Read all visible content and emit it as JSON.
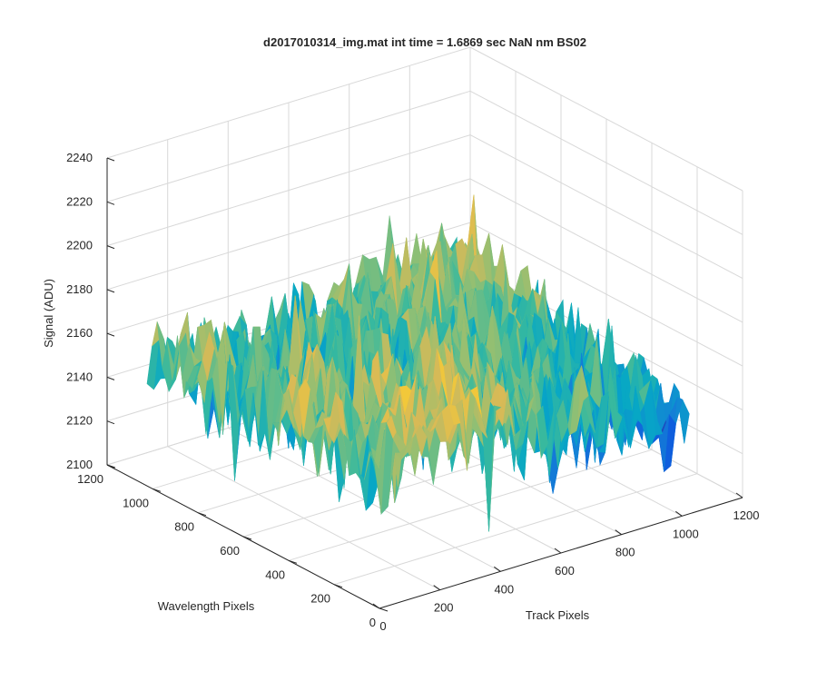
{
  "chart_data": {
    "type": "surface",
    "title": "d2017010314_img.mat int time = 1.6869 sec  NaN nm BS02",
    "xlabel": "Track Pixels",
    "ylabel": "Wavelength Pixels",
    "zlabel": "Signal (ADU)",
    "xlim": [
      0,
      1200
    ],
    "ylim": [
      0,
      1200
    ],
    "zlim": [
      2100,
      2240
    ],
    "xticks": [
      "0",
      "200",
      "400",
      "600",
      "800",
      "1000",
      "1200"
    ],
    "yticks": [
      "0",
      "200",
      "400",
      "600",
      "800",
      "1000",
      "1200"
    ],
    "zticks": [
      "2100",
      "2120",
      "2140",
      "2160",
      "2180",
      "2200",
      "2220",
      "2240"
    ],
    "grid": true,
    "colormap": "parula",
    "surface": {
      "x_extent": [
        0,
        1024
      ],
      "y_extent": [
        0,
        1024
      ],
      "base_level": 2155,
      "z_range": [
        2105,
        2230
      ]
    }
  }
}
